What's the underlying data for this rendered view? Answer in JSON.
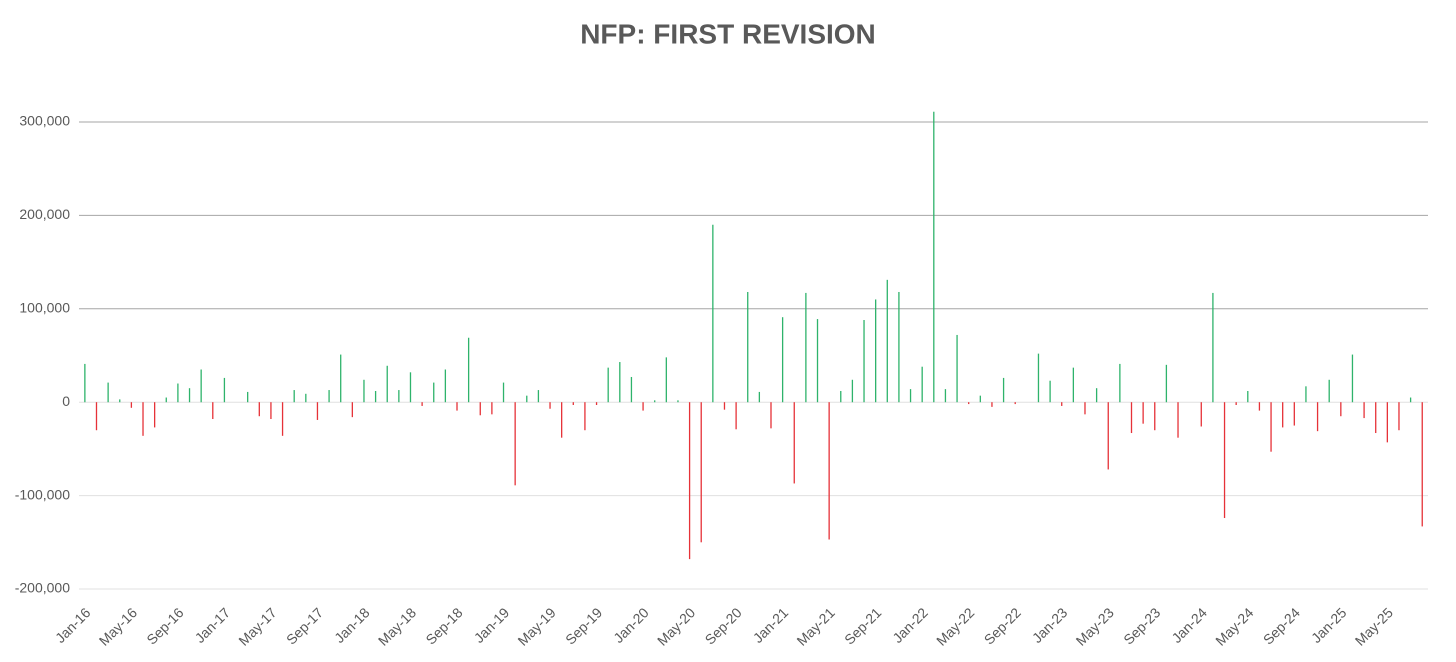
{
  "chart_data": {
    "type": "bar",
    "title": "NFP: FIRST REVISION",
    "categories": [
      "Jan-16",
      null,
      null,
      null,
      "May-16",
      null,
      null,
      null,
      "Sep-16",
      null,
      null,
      null,
      "Jan-17",
      null,
      null,
      null,
      "May-17",
      null,
      null,
      null,
      "Sep-17",
      null,
      null,
      null,
      "Jan-18",
      null,
      null,
      null,
      "May-18",
      null,
      null,
      null,
      "Sep-18",
      null,
      null,
      null,
      "Jan-19",
      null,
      null,
      null,
      "May-19",
      null,
      null,
      null,
      "Sep-19",
      null,
      null,
      null,
      "Jan-20",
      null,
      null,
      null,
      "May-20",
      null,
      null,
      null,
      "Sep-20",
      null,
      null,
      null,
      "Jan-21",
      null,
      null,
      null,
      "May-21",
      null,
      null,
      null,
      "Sep-21",
      null,
      null,
      null,
      "Jan-22",
      null,
      null,
      null,
      "May-22",
      null,
      null,
      null,
      "Sep-22",
      null,
      null,
      null,
      "Jan-23",
      null,
      null,
      null,
      "May-23",
      null,
      null,
      null,
      "Sep-23",
      null,
      null,
      null,
      "Jan-24",
      null,
      null,
      null,
      "May-24",
      null,
      null,
      null,
      "Sep-24",
      null,
      null,
      null,
      "Jan-25",
      null,
      null,
      null,
      "May-25",
      null,
      null,
      null
    ],
    "values": [
      41000,
      -30000,
      21000,
      3000,
      -6000,
      -36000,
      -27000,
      5000,
      20000,
      15000,
      35000,
      -18000,
      26000,
      0,
      11000,
      -15000,
      -18000,
      -36000,
      13000,
      9000,
      -19000,
      13000,
      51000,
      -16000,
      24000,
      12000,
      39000,
      13000,
      32000,
      -4000,
      21000,
      35000,
      -9000,
      69000,
      -14000,
      -13000,
      21000,
      -89000,
      7000,
      13000,
      -7000,
      -38000,
      -3000,
      -30000,
      -3000,
      37000,
      43000,
      27000,
      -9000,
      2000,
      48000,
      2000,
      -168000,
      -150000,
      190000,
      -8000,
      -29000,
      118000,
      11000,
      -28000,
      91000,
      -87000,
      117000,
      89000,
      -147000,
      12000,
      24000,
      88000,
      110000,
      131000,
      118000,
      14000,
      38000,
      311000,
      14000,
      72000,
      -2000,
      7000,
      -5000,
      26000,
      -2000,
      0,
      52000,
      23000,
      -4000,
      37000,
      -13000,
      15000,
      -72000,
      41000,
      -33000,
      -23000,
      -30000,
      40000,
      -38000,
      0,
      -26000,
      117000,
      -124000,
      -3000,
      12000,
      -9000,
      -53000,
      -27000,
      -25000,
      17000,
      -31000,
      24000,
      -15000,
      51000,
      -17000,
      -33000,
      -43000,
      -30000,
      5000,
      -133000
    ],
    "positive_color": "#2eb36b",
    "negative_color": "#e63238",
    "ylim": [
      -200000,
      300000
    ],
    "yticks": [
      {
        "value": -200000,
        "label": "-200,000"
      },
      {
        "value": -100000,
        "label": "-100,000"
      },
      {
        "value": 0,
        "label": "0"
      },
      {
        "value": 100000,
        "label": "100,000"
      },
      {
        "value": 200000,
        "label": "200,000"
      },
      {
        "value": 300000,
        "label": "300,000"
      }
    ],
    "grid": true
  }
}
